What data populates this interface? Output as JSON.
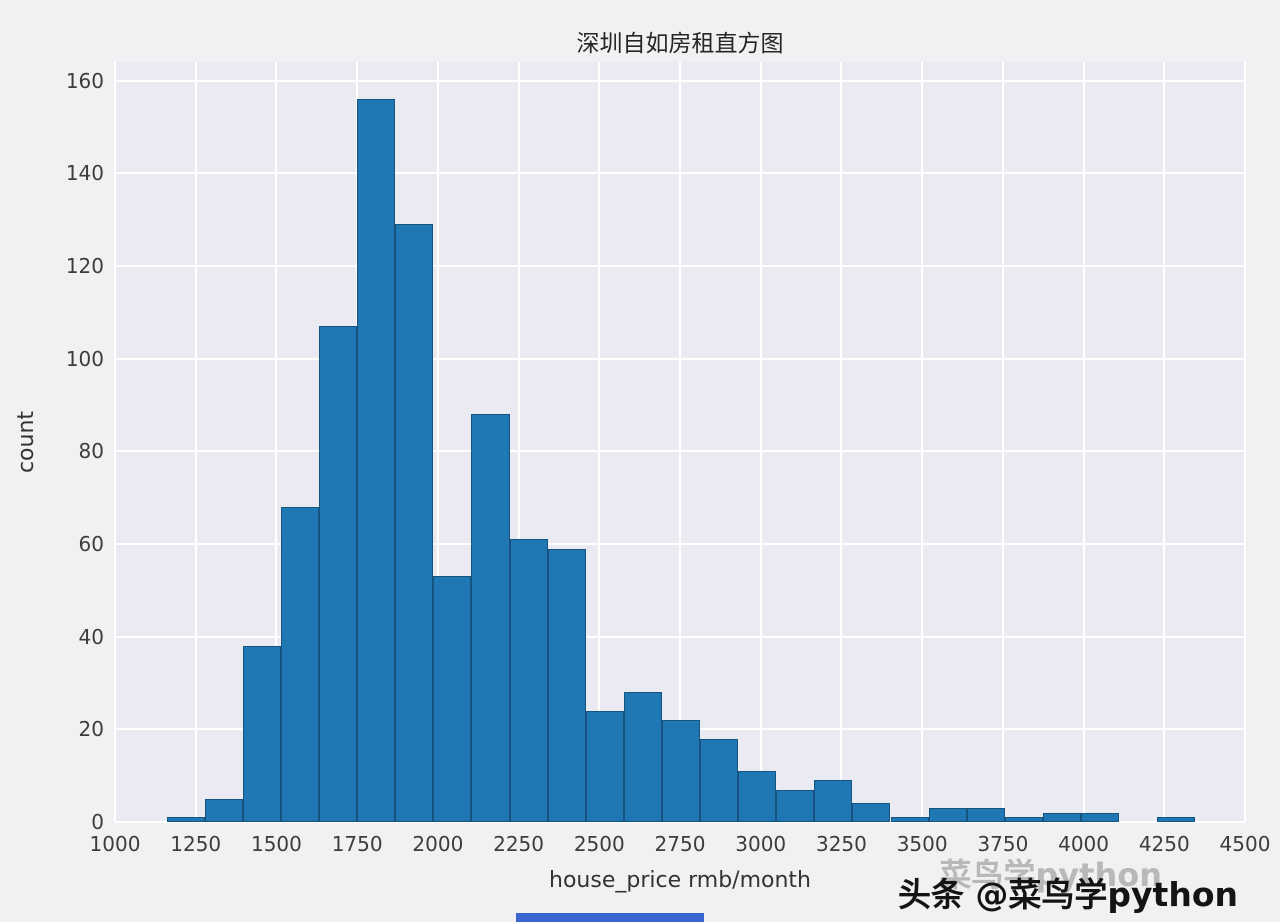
{
  "title": "深圳自如房租直方图",
  "watermark": {
    "main": "头条 @菜鸟学python",
    "echo": "菜鸟学python"
  },
  "chart_data": {
    "type": "bar",
    "subtype": "histogram",
    "title": "深圳自如房租直方图",
    "xlabel": "house_price rmb/month",
    "ylabel": "count",
    "bin_start": 1160,
    "bin_width": 118,
    "counts": [
      1,
      5,
      38,
      68,
      107,
      156,
      129,
      53,
      88,
      61,
      59,
      24,
      28,
      22,
      18,
      11,
      7,
      9,
      4,
      1,
      3,
      3,
      1,
      2,
      2,
      0,
      1
    ],
    "xlim": [
      1000,
      4500
    ],
    "ylim": [
      0,
      160
    ],
    "xticks": [
      1000,
      1250,
      1500,
      1750,
      2000,
      2250,
      2500,
      2750,
      3000,
      3250,
      3500,
      3750,
      4000,
      4250,
      4500
    ],
    "yticks": [
      0,
      20,
      40,
      60,
      80,
      100,
      120,
      140,
      160
    ],
    "grid": true,
    "legend": "none",
    "bar_color": "#1f77b4",
    "bar_edge_color": "#17537f",
    "plot_bg": "#eaeaf2",
    "grid_color": "#ffffff"
  }
}
